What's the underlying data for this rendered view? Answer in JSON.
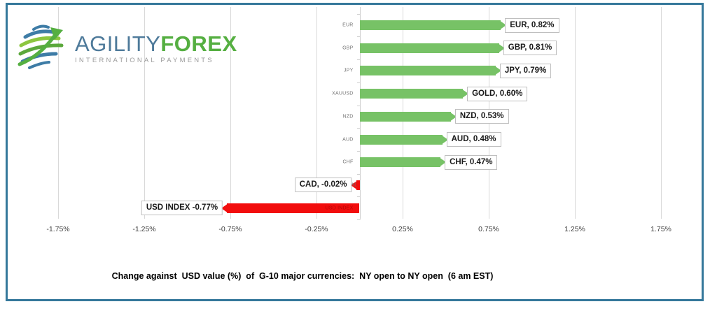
{
  "logo": {
    "brand_primary": "AGILITY",
    "brand_secondary": "FOREX",
    "tagline": "INTERNATIONAL PAYMENTS"
  },
  "chart_data": {
    "type": "bar",
    "orientation": "horizontal",
    "categories": [
      "EUR",
      "GBP",
      "JPY",
      "XAUUSD",
      "NZD",
      "AUD",
      "CHF",
      "CAD",
      "USD INDEX"
    ],
    "values": [
      0.82,
      0.81,
      0.79,
      0.6,
      0.53,
      0.48,
      0.47,
      -0.02,
      -0.77
    ],
    "data_labels": [
      "EUR, 0.82%",
      "GBP, 0.81%",
      "JPY, 0.79%",
      "GOLD, 0.60%",
      "NZD, 0.53%",
      "AUD, 0.48%",
      "CHF, 0.47%",
      "CAD, -0.02%",
      "USD INDEX -0.77%"
    ],
    "x_ticks": [
      "-1.75%",
      "-1.25%",
      "-0.75%",
      "-0.25%",
      "0.25%",
      "0.75%",
      "1.25%",
      "1.75%"
    ],
    "x_tick_values": [
      -1.75,
      -1.25,
      -0.75,
      -0.25,
      0.25,
      0.75,
      1.25,
      1.75
    ],
    "xlim": [
      -2.0,
      2.0
    ],
    "title": "Change against  USD value (%)  of  G-10 major currencies:  NY open to NY open  (6 am EST)",
    "xlabel": "",
    "ylabel": "",
    "legend": "none",
    "grid": "vertical",
    "positive_color": "#77C266",
    "negative_color": "#F20D0D",
    "gridline_color": "#D9D9D9",
    "frame_border_color": "#35789B"
  }
}
